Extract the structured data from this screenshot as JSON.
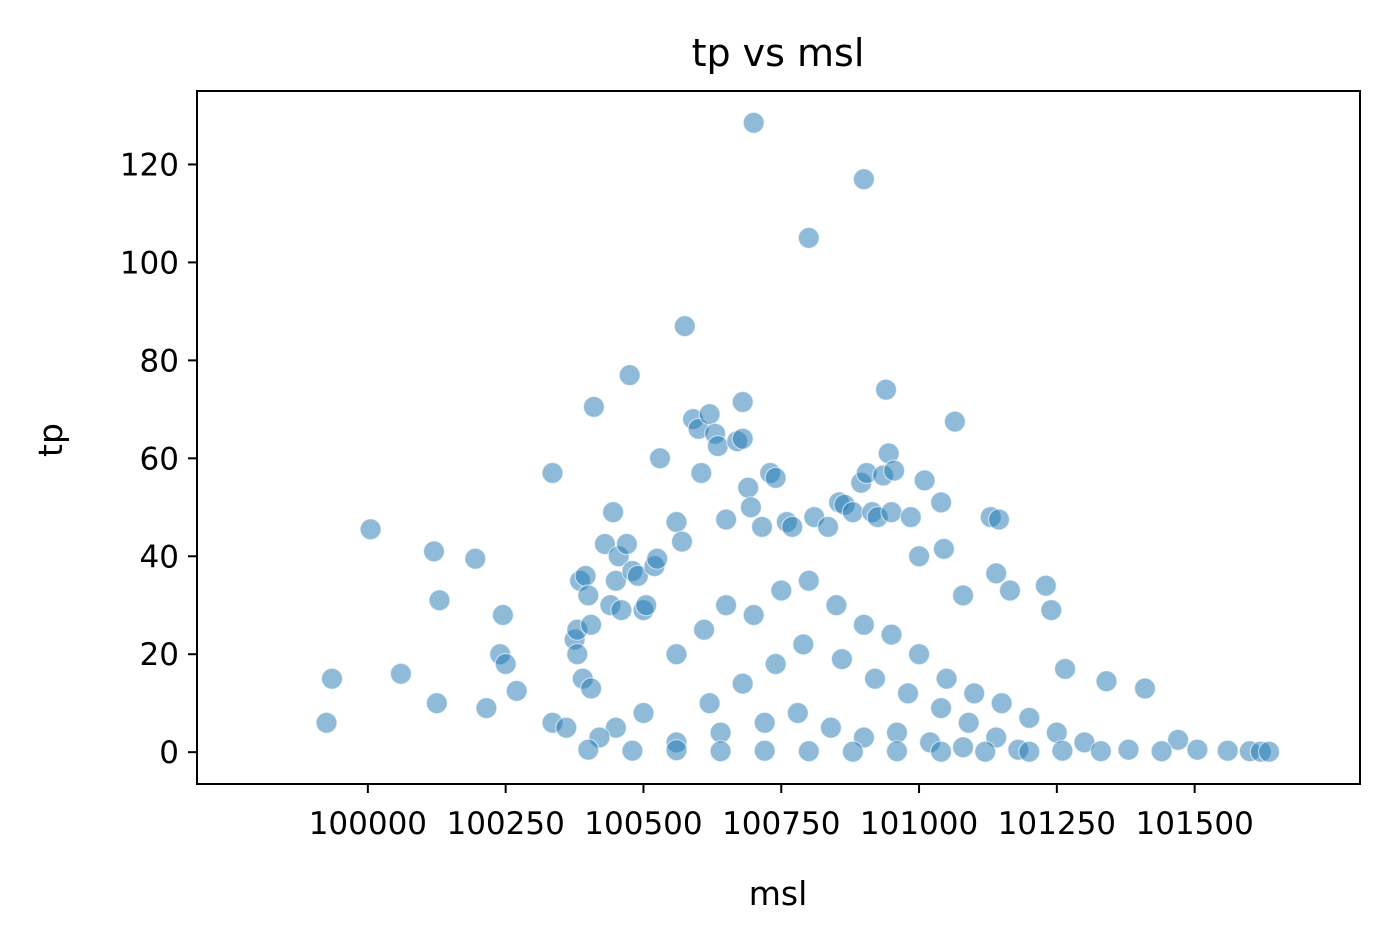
{
  "chart_data": {
    "type": "scatter",
    "title": "tp vs msl",
    "xlabel": "msl",
    "ylabel": "tp",
    "xlim": [
      99690,
      101800
    ],
    "ylim": [
      -6.5,
      135
    ],
    "xticks": [
      100000,
      100250,
      100500,
      100750,
      101000,
      101250,
      101500
    ],
    "xtick_labels": [
      "100000",
      "100250",
      "100500",
      "100750",
      "101000",
      "101250",
      "101500"
    ],
    "yticks": [
      0,
      20,
      40,
      60,
      80,
      100,
      120
    ],
    "ytick_labels": [
      "0",
      "20",
      "40",
      "60",
      "80",
      "100",
      "120"
    ],
    "grid": false,
    "marker_color": "#1f77b4",
    "marker_alpha": 0.5,
    "series": [
      {
        "points": [
          [
            99925,
            6
          ],
          [
            99935,
            15
          ],
          [
            100005,
            45.5
          ],
          [
            100060,
            16
          ],
          [
            100120,
            41
          ],
          [
            100130,
            31
          ],
          [
            100125,
            10
          ],
          [
            100195,
            39.5
          ],
          [
            100215,
            9
          ],
          [
            100240,
            20
          ],
          [
            100245,
            28
          ],
          [
            100250,
            18
          ],
          [
            100270,
            12.5
          ],
          [
            100335,
            57
          ],
          [
            100335,
            6
          ],
          [
            100360,
            5
          ],
          [
            100375,
            23
          ],
          [
            100380,
            20
          ],
          [
            100380,
            25
          ],
          [
            100385,
            35
          ],
          [
            100390,
            15
          ],
          [
            100395,
            36
          ],
          [
            100400,
            32
          ],
          [
            100405,
            26
          ],
          [
            100405,
            13
          ],
          [
            100410,
            70.5
          ],
          [
            100430,
            42.5
          ],
          [
            100440,
            30
          ],
          [
            100445,
            49
          ],
          [
            100450,
            35
          ],
          [
            100455,
            40
          ],
          [
            100460,
            29
          ],
          [
            100470,
            42.5
          ],
          [
            100475,
            77
          ],
          [
            100480,
            37
          ],
          [
            100490,
            36
          ],
          [
            100500,
            29
          ],
          [
            100505,
            30
          ],
          [
            100520,
            38
          ],
          [
            100525,
            39.5
          ],
          [
            100530,
            60
          ],
          [
            100560,
            47
          ],
          [
            100570,
            43
          ],
          [
            100575,
            87
          ],
          [
            100590,
            68
          ],
          [
            100600,
            66
          ],
          [
            100605,
            57
          ],
          [
            100620,
            69
          ],
          [
            100630,
            65
          ],
          [
            100635,
            62.5
          ],
          [
            100650,
            47.5
          ],
          [
            100670,
            63.5
          ],
          [
            100680,
            71.5
          ],
          [
            100680,
            64
          ],
          [
            100690,
            54
          ],
          [
            100695,
            50
          ],
          [
            100700,
            128.5
          ],
          [
            100715,
            46
          ],
          [
            100730,
            57
          ],
          [
            100740,
            56
          ],
          [
            100760,
            47
          ],
          [
            100770,
            46
          ],
          [
            100800,
            105
          ],
          [
            100810,
            48
          ],
          [
            100835,
            46
          ],
          [
            100855,
            51
          ],
          [
            100865,
            50.5
          ],
          [
            100880,
            49
          ],
          [
            100895,
            55
          ],
          [
            100900,
            117
          ],
          [
            100905,
            57
          ],
          [
            100915,
            49
          ],
          [
            100925,
            48
          ],
          [
            100935,
            56.5
          ],
          [
            100940,
            74
          ],
          [
            100945,
            61
          ],
          [
            100950,
            49
          ],
          [
            100955,
            57.5
          ],
          [
            100985,
            48
          ],
          [
            101000,
            40
          ],
          [
            101010,
            55.5
          ],
          [
            101040,
            51
          ],
          [
            101045,
            41.5
          ],
          [
            101065,
            67.5
          ],
          [
            101080,
            32
          ],
          [
            101130,
            48
          ],
          [
            101145,
            47.5
          ],
          [
            101140,
            36.5
          ],
          [
            101165,
            33
          ],
          [
            101230,
            34
          ],
          [
            101240,
            29
          ],
          [
            101265,
            17
          ],
          [
            101340,
            14.5
          ],
          [
            101410,
            13
          ],
          [
            101470,
            2.5
          ],
          [
            101505,
            0.5
          ],
          [
            101560,
            0.3
          ],
          [
            101600,
            0.2
          ],
          [
            101620,
            0.1
          ],
          [
            101635,
            0.1
          ],
          [
            100560,
            20
          ],
          [
            100610,
            25
          ],
          [
            100650,
            30
          ],
          [
            100700,
            28
          ],
          [
            100750,
            33
          ],
          [
            100800,
            35
          ],
          [
            100850,
            30
          ],
          [
            100900,
            26
          ],
          [
            100950,
            24
          ],
          [
            101000,
            20
          ],
          [
            101050,
            15
          ],
          [
            101100,
            12
          ],
          [
            101150,
            10
          ],
          [
            101200,
            7
          ],
          [
            101250,
            4
          ],
          [
            101300,
            2
          ],
          [
            100620,
            10
          ],
          [
            100680,
            14
          ],
          [
            100740,
            18
          ],
          [
            100790,
            22
          ],
          [
            100860,
            19
          ],
          [
            100920,
            15
          ],
          [
            100980,
            12
          ],
          [
            101040,
            9
          ],
          [
            101090,
            6
          ],
          [
            101140,
            3
          ],
          [
            100500,
            8
          ],
          [
            100450,
            5
          ],
          [
            100420,
            3
          ],
          [
            100560,
            2
          ],
          [
            100640,
            4
          ],
          [
            100720,
            6
          ],
          [
            100780,
            8
          ],
          [
            100840,
            5
          ],
          [
            100900,
            3
          ],
          [
            100960,
            4
          ],
          [
            101020,
            2
          ],
          [
            101080,
            1
          ],
          [
            101180,
            0.5
          ],
          [
            101260,
            0.3
          ],
          [
            101330,
            0.2
          ],
          [
            101380,
            0.5
          ],
          [
            100400,
            0.5
          ],
          [
            100480,
            0.3
          ],
          [
            100560,
            0.4
          ],
          [
            100640,
            0.2
          ],
          [
            100720,
            0.3
          ],
          [
            100800,
            0.2
          ],
          [
            100880,
            0.1
          ],
          [
            100960,
            0.2
          ],
          [
            101040,
            0.1
          ],
          [
            101120,
            0.1
          ],
          [
            101200,
            0.1
          ],
          [
            101440,
            0.2
          ]
        ]
      }
    ]
  }
}
